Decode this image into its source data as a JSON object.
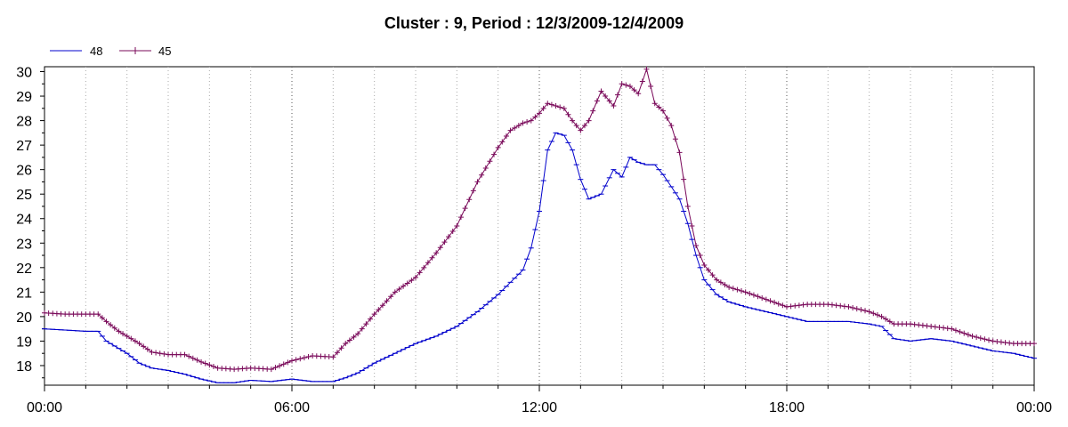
{
  "chart_data": {
    "type": "line",
    "title": "Cluster : 9, Period : 12/3/2009-12/4/2009",
    "xlabel": "",
    "ylabel": "",
    "x_range_hours": [
      0,
      24
    ],
    "ylim": [
      17.2,
      30.2
    ],
    "x_tick_labels": [
      "00:00",
      "06:00",
      "12:00",
      "18:00",
      "00:00"
    ],
    "x_tick_hours": [
      0,
      6,
      12,
      18,
      24
    ],
    "y_ticks": [
      18,
      19,
      20,
      21,
      22,
      23,
      24,
      25,
      26,
      27,
      28,
      29,
      30
    ],
    "grid": "dotted vertical",
    "legend": "top-left",
    "series": [
      {
        "name": "48",
        "color": "#0000cc",
        "x_hours": [
          0,
          0.5,
          1.0,
          1.3,
          1.5,
          1.8,
          2.0,
          2.3,
          2.6,
          3.0,
          3.4,
          3.8,
          4.2,
          4.6,
          5.0,
          5.5,
          6.0,
          6.5,
          7.0,
          7.3,
          7.6,
          8.0,
          8.5,
          9.0,
          9.5,
          10.0,
          10.5,
          11.0,
          11.3,
          11.6,
          11.8,
          12.0,
          12.2,
          12.4,
          12.6,
          12.8,
          13.0,
          13.2,
          13.5,
          13.8,
          14.0,
          14.2,
          14.4,
          14.6,
          14.8,
          15.0,
          15.2,
          15.4,
          15.6,
          15.8,
          16.0,
          16.3,
          16.6,
          17.0,
          17.5,
          18.0,
          18.5,
          19.0,
          19.5,
          20.0,
          20.3,
          20.6,
          21.0,
          21.5,
          22.0,
          22.5,
          23.0,
          23.5,
          24.0
        ],
        "y": [
          19.5,
          19.45,
          19.4,
          19.4,
          19.0,
          18.7,
          18.5,
          18.1,
          17.9,
          17.8,
          17.65,
          17.45,
          17.3,
          17.3,
          17.4,
          17.35,
          17.45,
          17.35,
          17.35,
          17.5,
          17.7,
          18.1,
          18.5,
          18.9,
          19.2,
          19.6,
          20.2,
          20.9,
          21.4,
          21.9,
          22.8,
          24.3,
          26.8,
          27.5,
          27.4,
          26.8,
          25.6,
          24.8,
          25.0,
          26.0,
          25.7,
          26.5,
          26.3,
          26.2,
          26.2,
          25.8,
          25.3,
          24.8,
          23.8,
          22.5,
          21.5,
          20.9,
          20.6,
          20.4,
          20.2,
          20.0,
          19.8,
          19.8,
          19.8,
          19.7,
          19.6,
          19.1,
          19.0,
          19.1,
          19.0,
          18.8,
          18.6,
          18.5,
          18.3
        ]
      },
      {
        "name": "45",
        "color": "#7a0a5a",
        "x_hours": [
          0,
          0.5,
          1.0,
          1.3,
          1.5,
          1.8,
          2.0,
          2.3,
          2.6,
          3.0,
          3.4,
          3.8,
          4.2,
          4.6,
          5.0,
          5.5,
          6.0,
          6.5,
          7.0,
          7.3,
          7.6,
          8.0,
          8.5,
          9.0,
          9.5,
          10.0,
          10.5,
          11.0,
          11.3,
          11.6,
          11.8,
          12.0,
          12.2,
          12.4,
          12.6,
          12.8,
          13.0,
          13.2,
          13.5,
          13.8,
          14.0,
          14.2,
          14.4,
          14.6,
          14.8,
          15.0,
          15.2,
          15.4,
          15.6,
          15.8,
          16.0,
          16.3,
          16.6,
          17.0,
          17.5,
          18.0,
          18.5,
          19.0,
          19.5,
          20.0,
          20.3,
          20.6,
          21.0,
          21.5,
          22.0,
          22.5,
          23.0,
          23.5,
          24.0
        ],
        "y": [
          20.15,
          20.1,
          20.1,
          20.1,
          19.8,
          19.4,
          19.2,
          18.9,
          18.55,
          18.45,
          18.45,
          18.15,
          17.9,
          17.85,
          17.9,
          17.85,
          18.2,
          18.4,
          18.35,
          18.9,
          19.3,
          20.1,
          21.0,
          21.6,
          22.6,
          23.7,
          25.5,
          26.9,
          27.6,
          27.9,
          28.0,
          28.3,
          28.7,
          28.6,
          28.5,
          28.0,
          27.6,
          28.0,
          29.2,
          28.6,
          29.5,
          29.4,
          29.1,
          30.1,
          28.7,
          28.4,
          27.8,
          26.7,
          24.5,
          22.9,
          22.1,
          21.5,
          21.2,
          21.0,
          20.7,
          20.4,
          20.5,
          20.5,
          20.4,
          20.2,
          20.0,
          19.7,
          19.7,
          19.6,
          19.5,
          19.2,
          19.0,
          18.9,
          18.9
        ]
      }
    ]
  }
}
